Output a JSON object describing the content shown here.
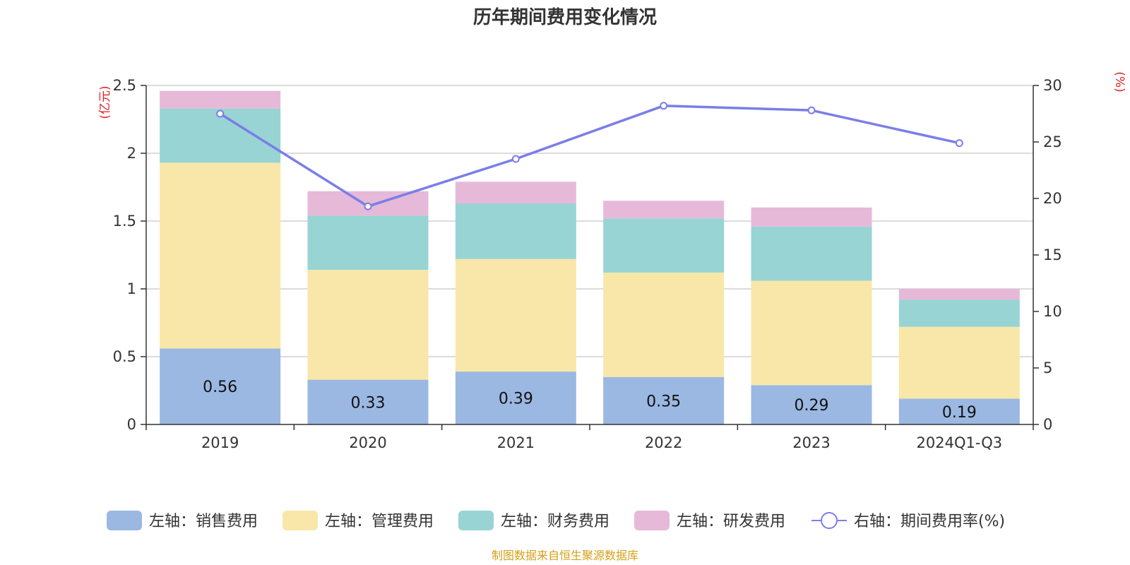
{
  "chart_data": {
    "type": "bar",
    "stacked": true,
    "title": "历年期间费用变化情况",
    "categories": [
      "2019",
      "2020",
      "2021",
      "2022",
      "2023",
      "2024Q1-Q3"
    ],
    "left_axis": {
      "unit": "(亿元)",
      "ylim": [
        0,
        2.5
      ],
      "ticks": [
        "0",
        "0.5",
        "1",
        "1.5",
        "2",
        "2.5"
      ]
    },
    "right_axis": {
      "unit": "(%)",
      "ylim": [
        0,
        30
      ],
      "ticks": [
        "0",
        "5",
        "10",
        "15",
        "20",
        "25",
        "30"
      ]
    },
    "series": [
      {
        "name": "左轴：销售费用",
        "axis": "left",
        "color": "#9bb8e2",
        "values": [
          0.56,
          0.33,
          0.39,
          0.35,
          0.29,
          0.19
        ],
        "labels": [
          "0.56",
          "0.33",
          "0.39",
          "0.35",
          "0.29",
          "0.19"
        ]
      },
      {
        "name": "左轴：管理费用",
        "axis": "left",
        "color": "#f8e7a8",
        "values": [
          1.37,
          0.81,
          0.83,
          0.77,
          0.77,
          0.53
        ]
      },
      {
        "name": "左轴：财务费用",
        "axis": "left",
        "color": "#98d4d4",
        "values": [
          0.4,
          0.4,
          0.41,
          0.4,
          0.4,
          0.2
        ]
      },
      {
        "name": "左轴：研发费用",
        "axis": "left",
        "color": "#e6b9d9",
        "values": [
          0.13,
          0.18,
          0.16,
          0.13,
          0.14,
          0.08
        ]
      }
    ],
    "line_series": {
      "name": "右轴：期间费用率(%)",
      "axis": "right",
      "color": "#7a7ee8",
      "values": [
        27.5,
        19.3,
        23.5,
        28.2,
        27.8,
        24.9
      ]
    }
  },
  "colors": {
    "unit": "#e02020",
    "source": "#d4a017",
    "grid": "#c8c8c8",
    "axis": "#333333"
  },
  "source_note": "制图数据来自恒生聚源数据库"
}
